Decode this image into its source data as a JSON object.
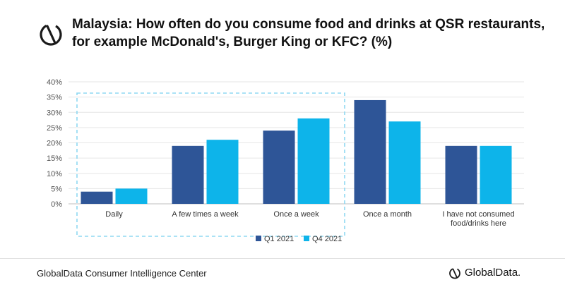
{
  "header": {
    "title": "Malaysia: How often do you consume food and drinks at QSR restaurants, for example McDonald's, Burger King or KFC? (%)",
    "logo_icon": "globaldata-icon"
  },
  "chart_data": {
    "type": "bar",
    "title": "Malaysia: How often do you consume food and drinks at QSR restaurants, for example McDonald's, Burger King or KFC? (%)",
    "categories": [
      "Daily",
      "A few times a week",
      "Once a week",
      "Once a month",
      "I have not consumed food/drinks here"
    ],
    "category_lines": [
      [
        "Daily"
      ],
      [
        "A few times a week"
      ],
      [
        "Once a week"
      ],
      [
        "Once a month"
      ],
      [
        "I have not consumed",
        "food/drinks here"
      ]
    ],
    "series": [
      {
        "name": "Q1 2021",
        "values": [
          4,
          19,
          24,
          34,
          19
        ],
        "color": "#2e5597"
      },
      {
        "name": "Q4 2021",
        "values": [
          5,
          21,
          28,
          27,
          19
        ],
        "color": "#0db4ea"
      }
    ],
    "ylim": [
      0,
      40
    ],
    "yticks": [
      0,
      5,
      10,
      15,
      20,
      25,
      30,
      35,
      40
    ],
    "ytick_labels": [
      "0%",
      "5%",
      "10%",
      "15%",
      "20%",
      "25%",
      "30%",
      "35%",
      "40%"
    ],
    "grid": true,
    "legend_position": "bottom",
    "highlight_categories": [
      "Daily",
      "A few times a week",
      "Once a week"
    ],
    "highlight_color": "#8fd8f2"
  },
  "footer": {
    "source": "GlobalData Consumer Intelligence Center",
    "brand": "GlobalData.",
    "brand_icon": "globaldata-icon"
  }
}
